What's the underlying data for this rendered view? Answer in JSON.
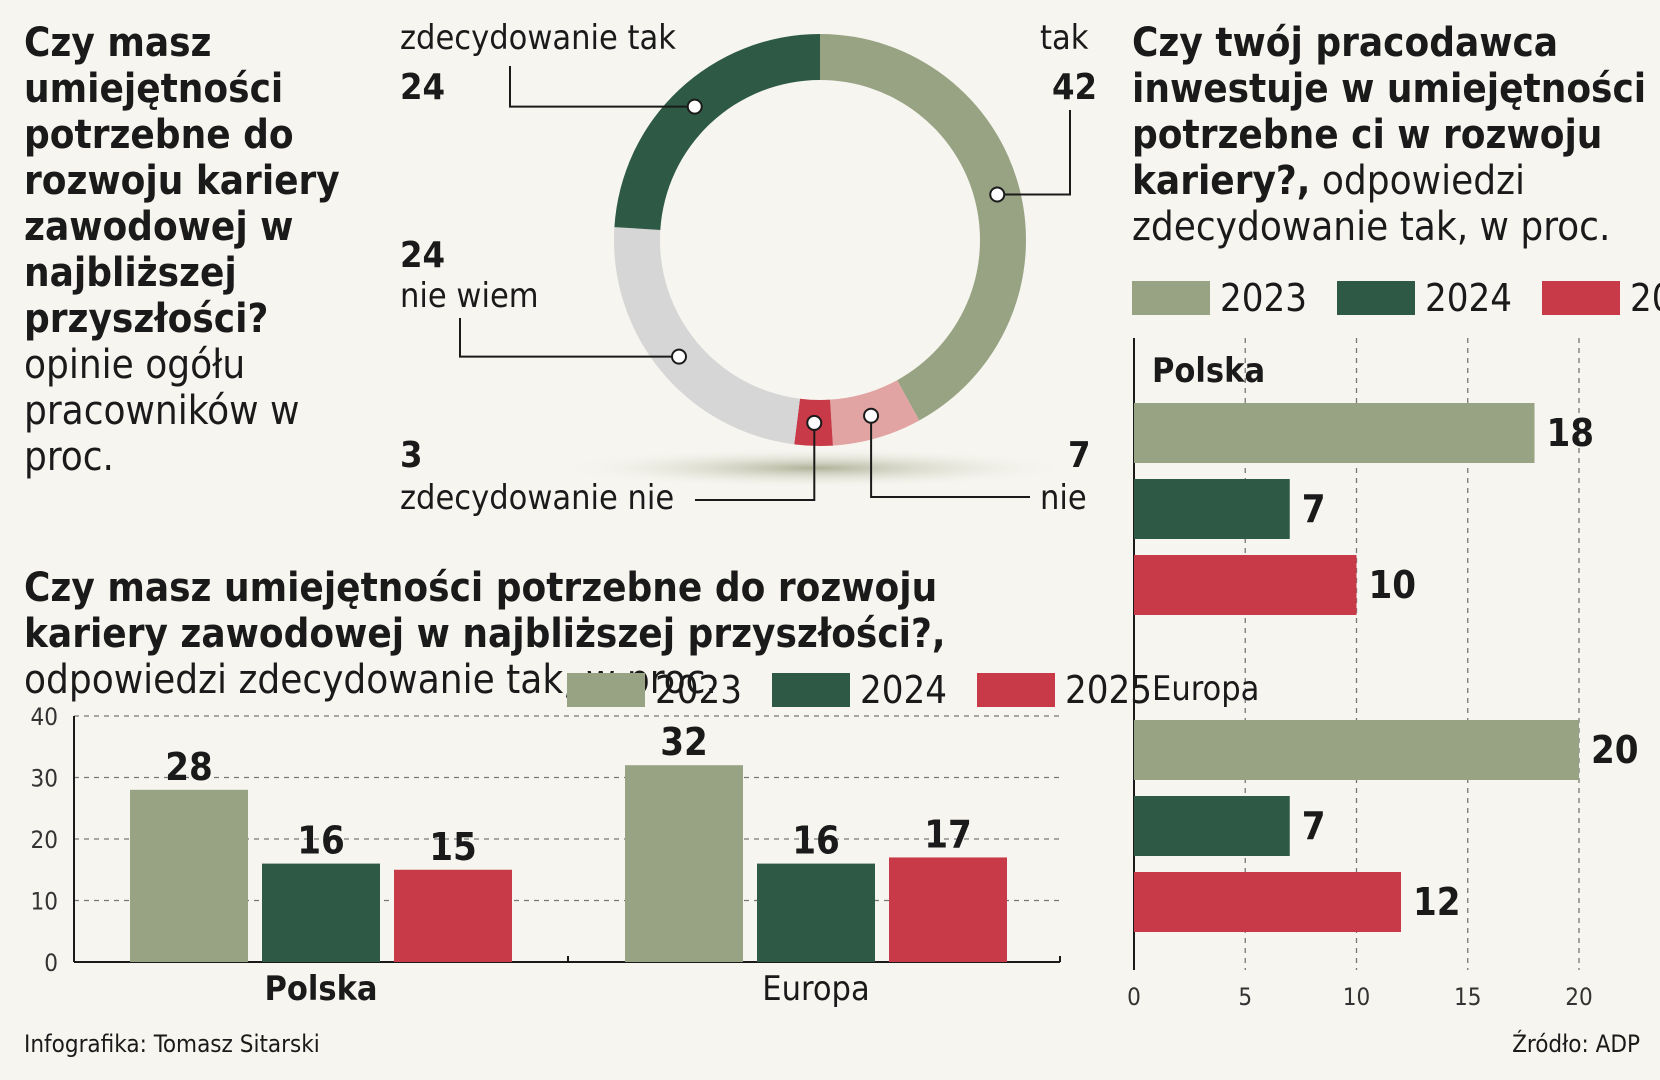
{
  "colors": {
    "c2023": "#98a384",
    "c2024": "#2e5a45",
    "c2025": "#c93a48",
    "nie": "#e2a3a3",
    "niewiem": "#d6d6d6"
  },
  "donut": {
    "title": "Czy masz umiejętności potrzebne do rozwoju kariery zawodowej w najbliższej przyszłości?",
    "subtitle": "opinie ogółu pracowników w proc.",
    "slices": [
      {
        "label": "tak",
        "value": 42
      },
      {
        "label": "nie",
        "value": 7
      },
      {
        "label": "zdecydowanie nie",
        "value": 3
      },
      {
        "label": "nie wiem",
        "value": 24
      },
      {
        "label": "zdecydowanie tak",
        "value": 24
      }
    ]
  },
  "hbar": {
    "title": "Czy twój pracodawca inwestuje w umiejętności potrzebne ci w rozwoju kariery?,",
    "subtitle": "odpowiedzi zdecydowanie tak, w proc."
  },
  "vbar": {
    "title": "Czy masz umiejętności potrzebne do rozwoju kariery zawodowej w najbliższej przyszłości?,",
    "subtitle": "odpowiedzi zdecydowanie tak, w proc."
  },
  "legend": [
    "2023",
    "2024",
    "2025"
  ],
  "chart_data": [
    {
      "type": "pie",
      "title": "Czy masz umiejętności potrzebne do rozwoju kariery zawodowej w najbliższej przyszłości?",
      "categories": [
        "tak",
        "nie",
        "zdecydowanie nie",
        "nie wiem",
        "zdecydowanie tak"
      ],
      "values": [
        42,
        7,
        3,
        24,
        24
      ]
    },
    {
      "type": "bar",
      "orientation": "horizontal",
      "title": "Czy twój pracodawca inwestuje w umiejętności potrzebne ci w rozwoju kariery?",
      "categories": [
        "Polska",
        "Europa"
      ],
      "series": [
        {
          "name": "2023",
          "values": [
            18,
            20
          ]
        },
        {
          "name": "2024",
          "values": [
            7,
            7
          ]
        },
        {
          "name": "2025",
          "values": [
            10,
            12
          ]
        }
      ],
      "xlim": [
        0,
        20
      ],
      "ticks": [
        "0",
        "5",
        "10",
        "15",
        "20"
      ]
    },
    {
      "type": "bar",
      "orientation": "vertical",
      "title": "Czy masz umiejętności potrzebne do rozwoju kariery zawodowej w najbliższej przyszłości?",
      "categories": [
        "Polska",
        "Europa"
      ],
      "series": [
        {
          "name": "2023",
          "values": [
            28,
            32
          ]
        },
        {
          "name": "2024",
          "values": [
            16,
            16
          ]
        },
        {
          "name": "2025",
          "values": [
            15,
            17
          ]
        }
      ],
      "ylim": [
        0,
        40
      ],
      "ticks": [
        "0",
        "10",
        "20",
        "30",
        "40"
      ]
    }
  ],
  "footer": {
    "credit": "Infografika: Tomasz Sitarski",
    "source": "Źródło: ADP"
  }
}
